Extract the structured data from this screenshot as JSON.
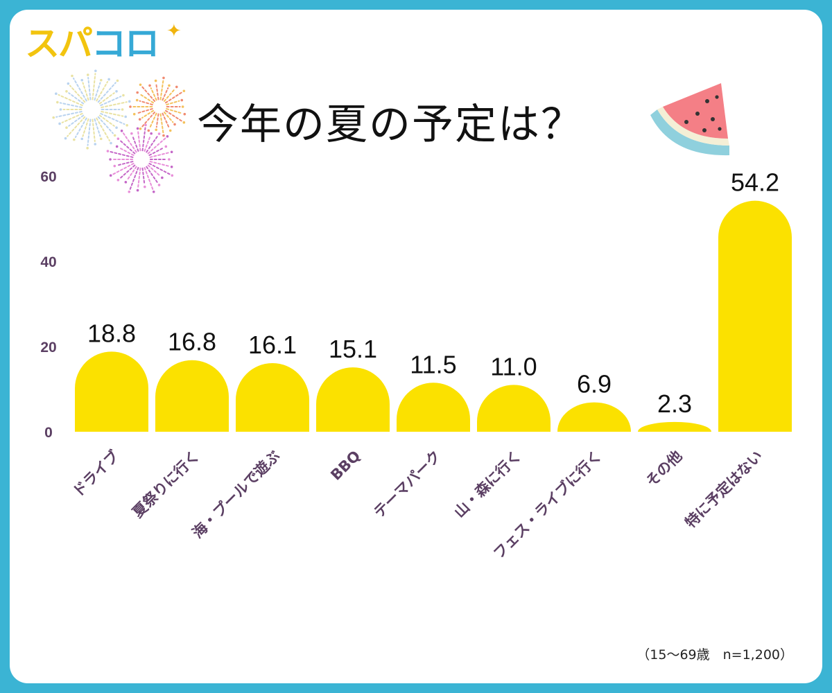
{
  "brand": {
    "part1": "スパ",
    "part2": "コロ",
    "star": "✦"
  },
  "note": "（15〜69歳　n=1,200）",
  "colors": {
    "bar": "#fbe100",
    "frame": "#3bb4d4",
    "axis_text": "#5b3f63"
  },
  "icons": [
    "fireworks-icon",
    "watermelon-icon",
    "sparkle-icon"
  ],
  "chart_data": {
    "type": "bar",
    "title": "今年の夏の予定は？",
    "xlabel": "",
    "ylabel": "",
    "ylim": [
      0,
      60
    ],
    "yticks": [
      0,
      20,
      40,
      60
    ],
    "grid": false,
    "categories": [
      "ドライブ",
      "夏祭りに行く",
      "海・プールで遊ぶ",
      "BBQ",
      "テーマパーク",
      "山・森に行く",
      "フェス・ライブに行く",
      "その他",
      "特に予定はない"
    ],
    "values": [
      18.8,
      16.8,
      16.1,
      15.1,
      11.5,
      11.0,
      6.9,
      2.3,
      54.2
    ],
    "value_labels": [
      "18.8",
      "16.8",
      "16.1",
      "15.1",
      "11.5",
      "11.0",
      "6.9",
      "2.3",
      "54.2"
    ]
  }
}
